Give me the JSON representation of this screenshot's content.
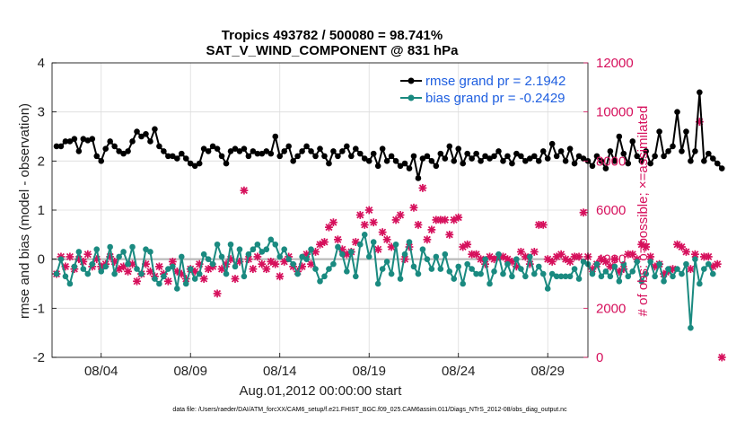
{
  "chart_data": {
    "type": "line",
    "title": "Tropics 493782 / 500080 = 98.741%",
    "subtitle": "SAT_V_WIND_COMPONENT @ 831 hPa",
    "xlabel": "Aug.01,2012 00:00:00 start",
    "ylabel": "rmse and bias (model - observation)",
    "y2label": "# of obs: o=possible; ×=assimilated",
    "footnote": "data file: /Users/raeder/DAI/ATM_forcXX/CAM6_setup/f.e21.FHIST_BGC.f09_025.CAM6assim.011/Diags_NTrS_2012-08/obs_diag_output.nc",
    "xticks": [
      {
        "x": 3.5,
        "label": "08/04"
      },
      {
        "x": 8.5,
        "label": "08/09"
      },
      {
        "x": 13.5,
        "label": "08/14"
      },
      {
        "x": 18.5,
        "label": "08/19"
      },
      {
        "x": 23.5,
        "label": "08/24"
      },
      {
        "x": 28.5,
        "label": "08/29"
      }
    ],
    "xlim": [
      0.75,
      30.75
    ],
    "ylim": [
      -2,
      4
    ],
    "yticks": [
      -2,
      -1,
      0,
      1,
      2,
      3,
      4
    ],
    "y2lim": [
      0,
      12000
    ],
    "y2ticks": [
      0,
      2000,
      4000,
      6000,
      8000,
      10000,
      12000
    ],
    "grid": true,
    "legend_position": "top-right",
    "colors": {
      "rmse": "#000000",
      "bias": "#1a8a80",
      "obs": "#d6105c",
      "zero_line": "#b5b5b5",
      "grid": "#dcdcdc"
    },
    "series": [
      {
        "name": "rmse grand pr = 2.1942",
        "axis": "left",
        "x_start": 1.0,
        "x_step": 0.25,
        "values": [
          2.3,
          2.3,
          2.4,
          2.4,
          2.45,
          2.2,
          2.45,
          2.42,
          2.45,
          2.1,
          2.0,
          2.25,
          2.4,
          2.3,
          2.2,
          2.15,
          2.2,
          2.4,
          2.6,
          2.5,
          2.55,
          2.4,
          2.65,
          2.3,
          2.2,
          2.1,
          2.1,
          2.05,
          2.15,
          2.05,
          1.95,
          1.9,
          1.95,
          2.25,
          2.2,
          2.3,
          2.25,
          2.1,
          1.95,
          2.2,
          2.25,
          2.2,
          2.25,
          2.1,
          2.2,
          2.15,
          2.15,
          2.2,
          2.15,
          2.5,
          2.1,
          2.2,
          2.3,
          2.0,
          2.1,
          2.2,
          2.3,
          2.2,
          2.1,
          2.25,
          2.1,
          1.95,
          2.2,
          2.1,
          2.2,
          2.3,
          2.1,
          2.25,
          2.15,
          2.05,
          2.0,
          2.15,
          1.9,
          2.25,
          2.0,
          2.1,
          2.0,
          1.9,
          1.95,
          1.85,
          2.1,
          1.65,
          2.05,
          2.1,
          2.0,
          1.9,
          2.15,
          2.05,
          2.3,
          2.0,
          2.25,
          1.95,
          2.15,
          2.05,
          2.15,
          2.0,
          2.1,
          2.05,
          2.1,
          2.2,
          2.0,
          2.1,
          1.95,
          2.15,
          2.1,
          2.0,
          2.05,
          2.1,
          2.0,
          2.2,
          2.05,
          2.35,
          2.1,
          2.2,
          2.0,
          2.25,
          1.95,
          2.1,
          2.05,
          2.0,
          1.9,
          2.1,
          2.0,
          1.85,
          2.2,
          2.0,
          2.5,
          2.15,
          1.95,
          2.4,
          2.1,
          2.0,
          2.2,
          1.95,
          2.1,
          2.6,
          2.1,
          2.2,
          2.3,
          3.0,
          2.2,
          2.6,
          2.0,
          2.2,
          3.4,
          2.0,
          2.15,
          2.05,
          1.95,
          1.85
        ]
      },
      {
        "name": "bias grand pr = -0.2429",
        "axis": "left",
        "x_start": 1.0,
        "x_step": 0.25,
        "values": [
          -0.3,
          0.0,
          -0.35,
          -0.5,
          -0.15,
          0.15,
          -0.2,
          -0.3,
          -0.1,
          0.2,
          -0.25,
          -0.15,
          0.25,
          -0.3,
          0.05,
          0.15,
          -0.1,
          0.25,
          -0.2,
          -0.3,
          0.2,
          0.15,
          -0.4,
          -0.5,
          -0.35,
          -0.2,
          -0.15,
          -0.6,
          0.05,
          -0.5,
          -0.2,
          -0.4,
          -0.3,
          0.1,
          0.0,
          -0.1,
          0.3,
          0.05,
          -0.3,
          0.3,
          -0.15,
          0.2,
          -0.35,
          0.1,
          0.2,
          0.3,
          0.15,
          0.2,
          0.4,
          0.3,
          0.05,
          0.2,
          0.0,
          -0.1,
          -0.3,
          0.05,
          0.0,
          0.2,
          -0.2,
          -0.45,
          -0.35,
          -0.2,
          -0.1,
          0.25,
          0.1,
          -0.25,
          0.15,
          -0.35,
          0.3,
          0.5,
          0.05,
          0.35,
          -0.5,
          -0.2,
          -0.05,
          -0.3,
          0.3,
          -0.4,
          0.1,
          0.35,
          -0.15,
          -0.3,
          0.2,
          0.0,
          -0.2,
          0.05,
          -0.2,
          0.1,
          -0.25,
          -0.4,
          -0.15,
          -0.5,
          -0.1,
          -0.2,
          -0.3,
          -0.3,
          0.0,
          -0.5,
          -0.25,
          0.1,
          -0.3,
          -0.1,
          -0.35,
          0.0,
          -0.2,
          -0.35,
          0.05,
          -0.3,
          -0.15,
          -0.3,
          -0.6,
          -0.3,
          -0.35,
          -0.35,
          -0.35,
          -0.35,
          -0.2,
          -0.4,
          -0.05,
          -0.1,
          -0.3,
          -0.1,
          -0.35,
          -0.25,
          -0.35,
          -0.15,
          -0.45,
          -0.1,
          -0.35,
          -0.25,
          -0.05,
          -0.45,
          -0.3,
          -0.05,
          -0.35,
          -0.1,
          -0.45,
          -0.2,
          -0.35,
          -0.2,
          -0.3,
          -0.1,
          -1.4,
          0.0,
          -0.5,
          -0.2,
          -0.1,
          -0.3
        ]
      },
      {
        "name": "# of obs assimilated",
        "axis": "right",
        "marker": "×",
        "x_start": 1.0,
        "x_step": 0.25,
        "values": [
          3400,
          4100,
          3700,
          4100,
          3600,
          4000,
          3900,
          4200,
          3700,
          4000,
          3700,
          3800,
          4100,
          3900,
          3600,
          3700,
          3500,
          3800,
          3100,
          3400,
          3800,
          3500,
          3300,
          3700,
          3400,
          3100,
          3900,
          3500,
          3400,
          3200,
          3600,
          3500,
          3800,
          3200,
          3600,
          3700,
          2600,
          3600,
          3800,
          4000,
          3200,
          3900,
          6800,
          4000,
          3600,
          4100,
          3800,
          3600,
          3900,
          3800,
          3300,
          3900,
          4100,
          3700,
          3500,
          3700,
          4200,
          3800,
          4300,
          4600,
          4700,
          5300,
          5500,
          4800,
          4400,
          4200,
          4300,
          4700,
          5800,
          5400,
          6000,
          5500,
          4400,
          5100,
          4800,
          4500,
          5600,
          5800,
          4000,
          4500,
          6100,
          5400,
          6900,
          4800,
          5200,
          5600,
          5600,
          5600,
          5000,
          5600,
          5700,
          4500,
          4600,
          4200,
          4200,
          4000,
          3800,
          4100,
          4000,
          4100,
          4100,
          4000,
          3900,
          3700,
          4300,
          4100,
          3800,
          4300,
          5400,
          5400,
          4000,
          3900,
          4100,
          4200,
          4000,
          3900,
          4100,
          4100,
          5900,
          4100,
          3600,
          3800,
          4000,
          3900,
          3700,
          4000,
          3500,
          3600,
          4200,
          4200,
          4000,
          4600,
          4500,
          4100,
          3700,
          3800,
          3400,
          3500,
          3600,
          4600,
          4500,
          4300,
          3600,
          4200,
          9600,
          4100,
          4100,
          3700,
          3800,
          0
        ]
      }
    ]
  }
}
